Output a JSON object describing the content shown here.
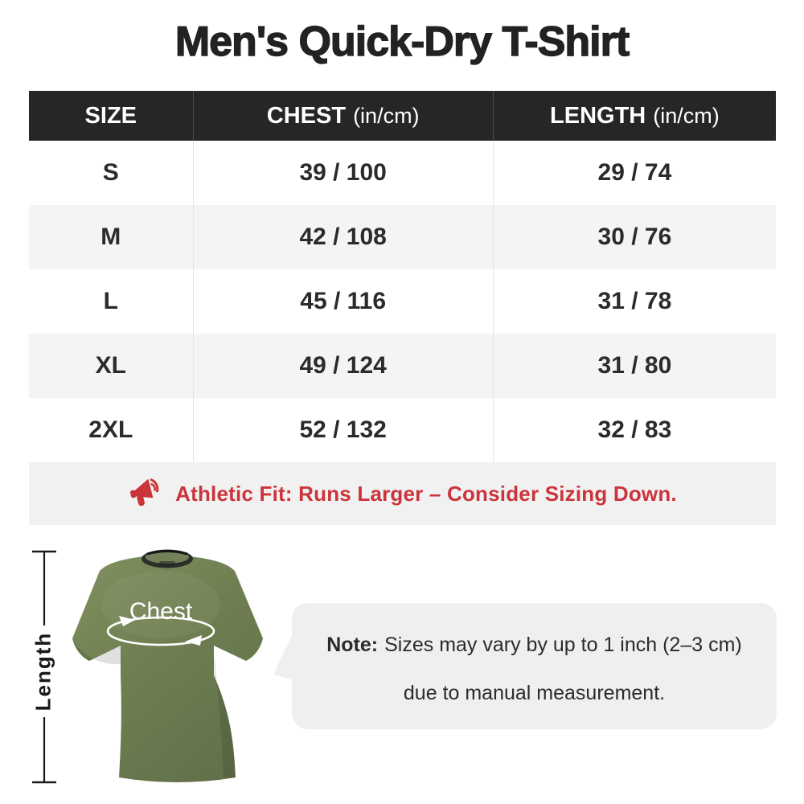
{
  "title": "Men's Quick-Dry T-Shirt",
  "size_chart": {
    "columns": [
      "SIZE",
      "CHEST",
      "LENGTH"
    ],
    "unit_suffix": "(in/cm)",
    "rows": [
      {
        "size": "S",
        "chest": "39 / 100",
        "length": "29 / 74"
      },
      {
        "size": "M",
        "chest": "42 / 108",
        "length": "30 / 76"
      },
      {
        "size": "L",
        "chest": "45 / 116",
        "length": "31 / 78"
      },
      {
        "size": "XL",
        "chest": "49 / 124",
        "length": "31 / 80"
      },
      {
        "size": "2XL",
        "chest": "52 / 132",
        "length": "32 / 83"
      }
    ]
  },
  "fit_note": {
    "icon": "megaphone-icon",
    "text": "Athletic Fit: Runs Larger – Consider Sizing Down."
  },
  "diagram": {
    "chest_label": "Chest",
    "length_label": "Length"
  },
  "measurement_note": {
    "label": "Note:",
    "line1": "Sizes may vary by up to 1 inch (2–3 cm)",
    "line2": "due to manual measurement."
  },
  "colors": {
    "accent_red": "#cb343b",
    "header_bg": "#262626",
    "row_alt": "#f4f4f4",
    "note_strip_bg": "#f1f1f1",
    "bubble_bg": "#efefef",
    "shirt_green": "#6f7e55",
    "title_color": "#222222"
  }
}
